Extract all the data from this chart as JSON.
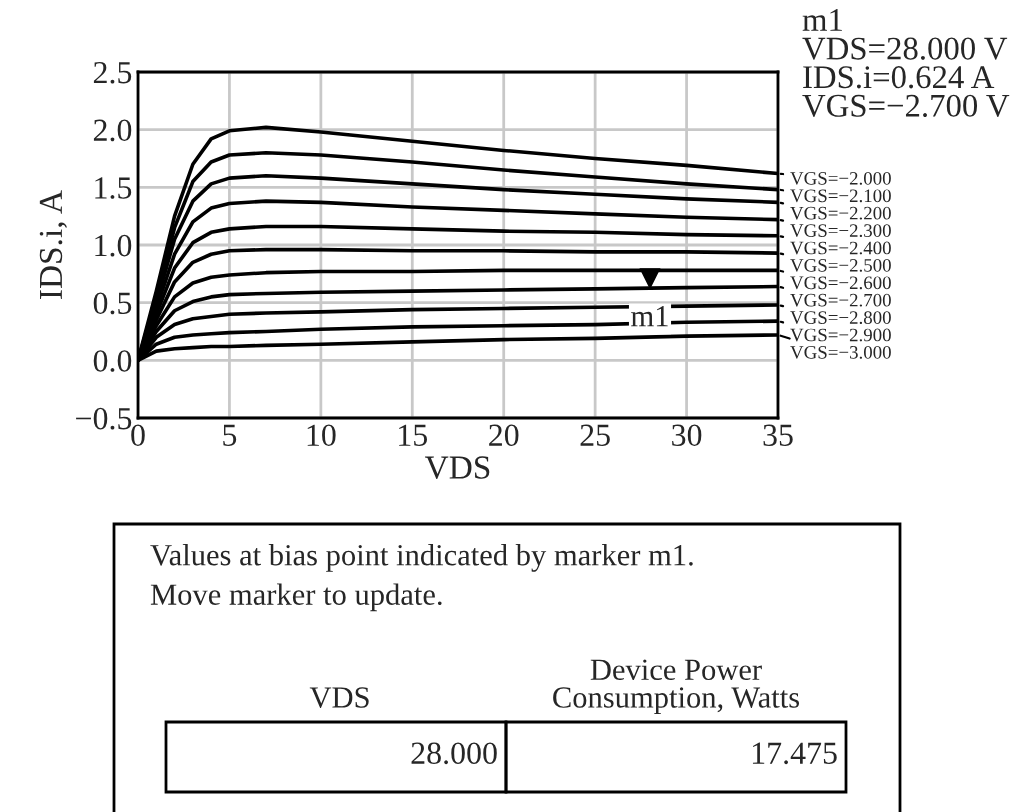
{
  "chart_data": {
    "type": "line",
    "xlabel": "VDS",
    "ylabel": "IDS.i, A",
    "xlim": [
      0,
      35
    ],
    "xticks": [
      0,
      5,
      10,
      15,
      20,
      25,
      30,
      35
    ],
    "ylim": [
      -0.5,
      2.5
    ],
    "yticks": [
      {
        "value": -0.5,
        "label": "−0.5"
      },
      {
        "value": 0.0,
        "label": "0.0"
      },
      {
        "value": 0.5,
        "label": "0.5"
      },
      {
        "value": 1.0,
        "label": "1.0"
      },
      {
        "value": 1.5,
        "label": "1.5"
      },
      {
        "value": 2.0,
        "label": "2.0"
      },
      {
        "value": 2.5,
        "label": "2.5"
      }
    ],
    "grid": true,
    "legend": "right",
    "marker": "none",
    "line_style": "solid",
    "x": [
      0,
      1,
      2,
      3,
      4,
      5,
      7,
      10,
      15,
      20,
      25,
      30,
      35
    ],
    "series": [
      {
        "name": "VGS=−2.000",
        "color": "#000000",
        "values": [
          0,
          0.6,
          1.25,
          1.7,
          1.92,
          1.99,
          2.02,
          1.98,
          1.9,
          1.82,
          1.75,
          1.69,
          1.62
        ]
      },
      {
        "name": "VGS=−2.100",
        "color": "#000000",
        "values": [
          0,
          0.55,
          1.15,
          1.55,
          1.72,
          1.78,
          1.8,
          1.78,
          1.72,
          1.65,
          1.59,
          1.53,
          1.48
        ]
      },
      {
        "name": "VGS=−2.200",
        "color": "#000000",
        "values": [
          0,
          0.5,
          1.05,
          1.38,
          1.53,
          1.58,
          1.6,
          1.58,
          1.53,
          1.48,
          1.44,
          1.4,
          1.37
        ]
      },
      {
        "name": "VGS=−2.300",
        "color": "#000000",
        "values": [
          0,
          0.45,
          0.92,
          1.2,
          1.32,
          1.36,
          1.38,
          1.37,
          1.33,
          1.3,
          1.27,
          1.24,
          1.22
        ]
      },
      {
        "name": "VGS=−2.400",
        "color": "#000000",
        "values": [
          0,
          0.4,
          0.8,
          1.02,
          1.11,
          1.14,
          1.16,
          1.16,
          1.14,
          1.12,
          1.11,
          1.09,
          1.08
        ]
      },
      {
        "name": "VGS=−2.500",
        "color": "#000000",
        "values": [
          0,
          0.35,
          0.68,
          0.85,
          0.92,
          0.95,
          0.96,
          0.96,
          0.95,
          0.95,
          0.94,
          0.94,
          0.93
        ]
      },
      {
        "name": "VGS=−2.600",
        "color": "#000000",
        "values": [
          0,
          0.3,
          0.55,
          0.67,
          0.72,
          0.74,
          0.76,
          0.77,
          0.77,
          0.78,
          0.78,
          0.78,
          0.78
        ]
      },
      {
        "name": "VGS=−2.700",
        "color": "#000000",
        "values": [
          0,
          0.25,
          0.43,
          0.51,
          0.55,
          0.57,
          0.58,
          0.59,
          0.6,
          0.61,
          0.62,
          0.63,
          0.64
        ]
      },
      {
        "name": "VGS=−2.800",
        "color": "#000000",
        "values": [
          0,
          0.2,
          0.31,
          0.36,
          0.38,
          0.4,
          0.41,
          0.42,
          0.44,
          0.45,
          0.46,
          0.47,
          0.48
        ]
      },
      {
        "name": "VGS=−2.900",
        "color": "#000000",
        "values": [
          0,
          0.14,
          0.2,
          0.22,
          0.23,
          0.24,
          0.25,
          0.27,
          0.29,
          0.3,
          0.31,
          0.33,
          0.34
        ]
      },
      {
        "name": "VGS=−3.000",
        "color": "#000000",
        "values": [
          0,
          0.08,
          0.1,
          0.11,
          0.12,
          0.12,
          0.13,
          0.14,
          0.16,
          0.18,
          0.19,
          0.21,
          0.22
        ]
      }
    ],
    "annotations": [
      {
        "text": "m1",
        "x": 28,
        "y": 0.624
      },
      "m1\nVDS=28.000 V\nIDS.i=0.624 A\nVGS=−2.700 V",
      "Values at bias point indicated by marker m1.\nMove marker to update.",
      "VDS",
      "Device Power\nConsumption, Watts",
      "28.000",
      "17.475"
    ]
  }
}
